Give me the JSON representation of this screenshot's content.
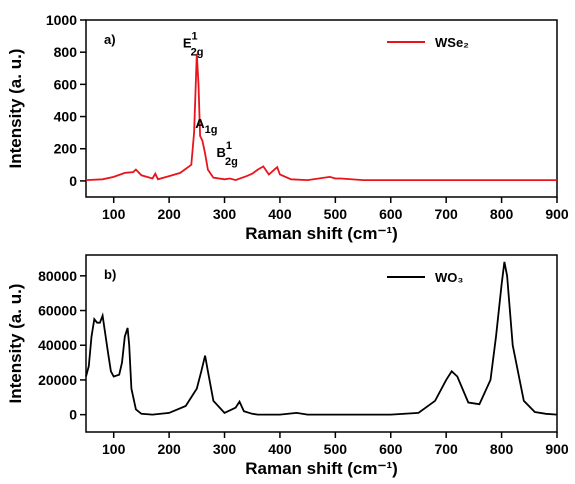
{
  "chart_data": [
    {
      "type": "line",
      "panel_label": "a)",
      "xlabel": "Raman shift (cm⁻¹)",
      "ylabel": "Intensity (a. u.)",
      "xlim": [
        50,
        900
      ],
      "ylim": [
        -100,
        1000
      ],
      "xticks": [
        100,
        200,
        300,
        400,
        500,
        600,
        700,
        800,
        900
      ],
      "yticks": [
        0,
        200,
        400,
        600,
        800,
        1000
      ],
      "legend": "upper right",
      "annotations": [
        {
          "text": "E",
          "sup": "1",
          "sub": "2g"
        },
        {
          "text": "A",
          "sub": "1g"
        },
        {
          "text": "B",
          "sup": "1",
          "sub": "2g"
        }
      ],
      "series": [
        {
          "name": "WSe₂",
          "color": "#e8141b",
          "x": [
            50,
            80,
            100,
            120,
            135,
            140,
            150,
            170,
            175,
            180,
            200,
            220,
            240,
            245,
            250,
            253,
            256,
            260,
            265,
            270,
            280,
            300,
            310,
            320,
            340,
            350,
            360,
            370,
            380,
            390,
            395,
            400,
            420,
            450,
            490,
            500,
            510,
            550,
            600,
            700,
            800,
            900
          ],
          "values": [
            5,
            10,
            25,
            50,
            55,
            70,
            35,
            15,
            45,
            10,
            30,
            50,
            100,
            300,
            790,
            600,
            280,
            250,
            170,
            70,
            20,
            10,
            15,
            5,
            30,
            45,
            70,
            90,
            40,
            70,
            85,
            40,
            10,
            5,
            25,
            15,
            15,
            5,
            5,
            5,
            5,
            5
          ]
        }
      ]
    },
    {
      "type": "line",
      "panel_label": "b)",
      "xlabel": "Raman shift (cm⁻¹)",
      "ylabel": "Intensity (a. u.)",
      "xlim": [
        50,
        900
      ],
      "ylim": [
        -10000,
        92000
      ],
      "xticks": [
        100,
        200,
        300,
        400,
        500,
        600,
        700,
        800,
        900
      ],
      "yticks": [
        0,
        20000,
        40000,
        60000,
        80000
      ],
      "legend": "upper right",
      "series": [
        {
          "name": "WO₃",
          "color": "#000000",
          "x": [
            50,
            55,
            60,
            65,
            70,
            75,
            80,
            85,
            90,
            95,
            100,
            110,
            115,
            120,
            125,
            128,
            132,
            140,
            150,
            170,
            200,
            230,
            250,
            258,
            265,
            270,
            280,
            300,
            320,
            327,
            335,
            350,
            360,
            400,
            430,
            450,
            500,
            600,
            650,
            680,
            700,
            710,
            720,
            740,
            760,
            780,
            790,
            800,
            805,
            810,
            820,
            840,
            860,
            880,
            900
          ],
          "values": [
            22000,
            28000,
            45000,
            55000,
            53000,
            53000,
            57000,
            46000,
            35000,
            25000,
            22000,
            23000,
            30000,
            45000,
            50000,
            40000,
            15000,
            3000,
            500,
            0,
            1000,
            5000,
            15000,
            25000,
            34000,
            25000,
            8000,
            1000,
            4000,
            7500,
            2000,
            500,
            0,
            0,
            1000,
            0,
            0,
            0,
            1000,
            8000,
            20000,
            25000,
            22000,
            7000,
            6000,
            20000,
            45000,
            75000,
            88000,
            80000,
            40000,
            8000,
            1500,
            500,
            0
          ]
        }
      ]
    }
  ]
}
